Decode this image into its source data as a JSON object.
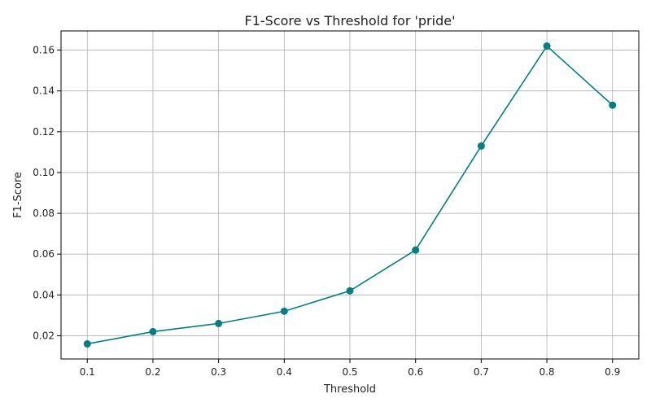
{
  "chart_data": {
    "type": "line",
    "title": "F1-Score vs Threshold for 'pride'",
    "xlabel": "Threshold",
    "ylabel": "F1-Score",
    "x": [
      0.1,
      0.2,
      0.3,
      0.4,
      0.5,
      0.6,
      0.7,
      0.8,
      0.9
    ],
    "series": [
      {
        "values": [
          0.016,
          0.022,
          0.026,
          0.032,
          0.042,
          0.062,
          0.113,
          0.162,
          0.133
        ]
      }
    ],
    "xlim": [
      0.06,
      0.94
    ],
    "ylim": [
      0.0086,
      0.1694
    ],
    "xticks": [
      "0.1",
      "0.2",
      "0.3",
      "0.4",
      "0.5",
      "0.6",
      "0.7",
      "0.8",
      "0.9"
    ],
    "yticks": [
      "0.02",
      "0.04",
      "0.06",
      "0.08",
      "0.10",
      "0.12",
      "0.14",
      "0.16"
    ],
    "grid": true,
    "line_color": "#008080"
  }
}
